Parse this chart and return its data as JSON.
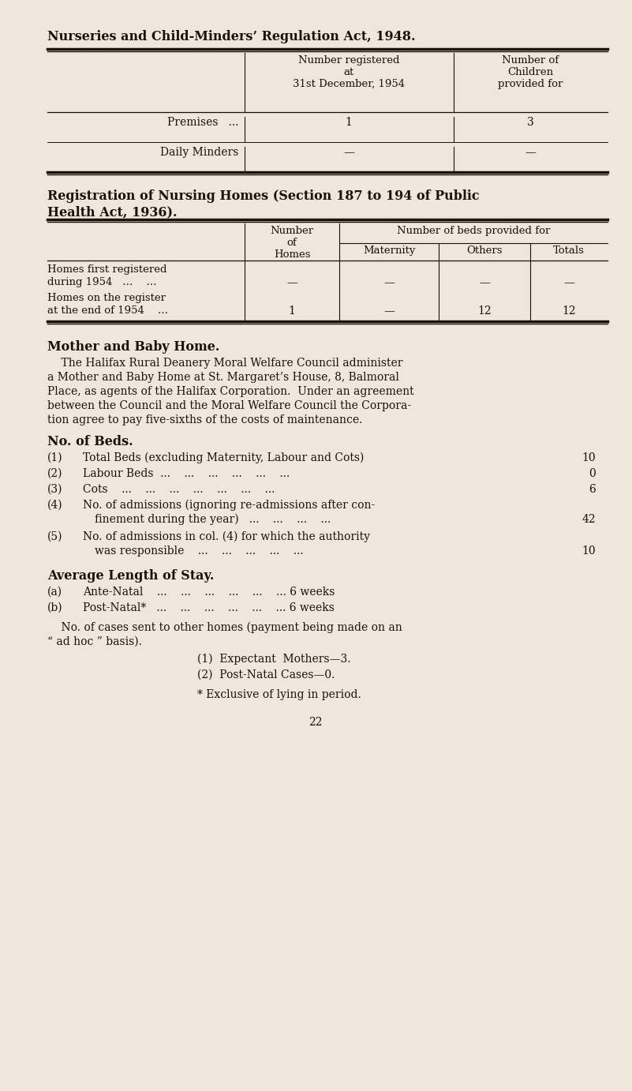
{
  "bg_color": "#ede8db",
  "text_color": "#1a1209",
  "page_width": 8.01,
  "page_height": 13.82,
  "title1": "Nurseries and Child-Minders’ Regulation Act, 1948.",
  "table1_col1_header": "Number registered\nat\n31st December, 1954",
  "table1_col2_header": "Number of\nChildren\nprovided for",
  "table1_rows": [
    [
      "Premises   ...",
      "1",
      "3"
    ],
    [
      "Daily Minders",
      "—",
      "—"
    ]
  ],
  "title2_line1": "Registration of Nursing Homes (Section 187 to 194 of Public",
  "title2_line2": "Health Act, 1936).",
  "table2_homes_header": "Number\nof\nHomes",
  "table2_beds_header": "Number of beds provided for",
  "table2_sub_headers": [
    "Maternity",
    "Others",
    "Totals"
  ],
  "table2_rows": [
    [
      "Homes first registered\nduring 1954   …    …",
      "—",
      "—",
      "—",
      "—"
    ],
    [
      "Homes on the register\nat the end of 1954    …",
      "1",
      "—",
      "12",
      "12"
    ]
  ],
  "mother_heading": "Mother and Baby Home.",
  "mother_para": [
    "    The Halifax Rural Deanery Moral Welfare Council administer",
    "a Mother and Baby Home at St. Margaret’s House, 8, Balmoral",
    "Place, as agents of the Halifax Corporation.  Under an agreement",
    "between the Council and the Moral Welfare Council the Corpora-",
    "tion agree to pay five-sixths of the costs of maintenance."
  ],
  "beds_heading": "No. of Beds.",
  "beds_items": [
    {
      "num": "(1)",
      "text1": "Total Beds (excluding Maternity, Labour and Cots)",
      "text2": null,
      "val": "10"
    },
    {
      "num": "(2)",
      "text1": "Labour Beds  ...    ...    ...    ...    ...    ...",
      "text2": null,
      "val": "0"
    },
    {
      "num": "(3)",
      "text1": "Cots    ...    ...    ...    ...    ...    ...    ...",
      "text2": null,
      "val": "6"
    },
    {
      "num": "(4)",
      "text1": "No. of admissions (ignoring re-admissions after con-",
      "text2": "finement during the year)   ...    ...    ...    ...",
      "val": "42"
    },
    {
      "num": "(5)",
      "text1": "No. of admissions in col. (4) for which the authority",
      "text2": "was responsible    ...    ...    ...    ...    ...",
      "val": "10"
    }
  ],
  "stay_heading": "Average Length of Stay.",
  "stay_items": [
    {
      "num": "(a)",
      "text": "Ante-Natal    ...    ...    ...    ...    ...    ... 6 weeks"
    },
    {
      "num": "(b)",
      "text": "Post-Natal*   ...    ...    ...    ...    ...    ... 6 weeks"
    }
  ],
  "note_line1": "    No. of cases sent to other homes (payment being made on an",
  "note_line2": "“ ad hoc ” basis).",
  "sub_items": [
    "(1)  Expectant  Mothers—3.",
    "(2)  Post-Natal Cases—0."
  ],
  "footnote": "* Exclusive of lying in period.",
  "page_num": "22"
}
